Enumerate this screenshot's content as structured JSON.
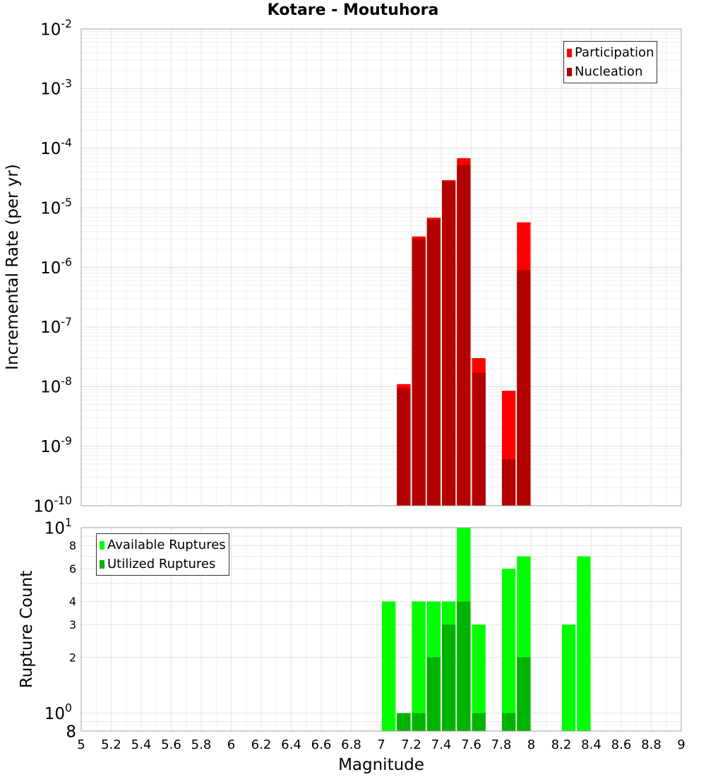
{
  "chart_data": [
    {
      "type": "bar",
      "title": "Kotare - Moutuhora",
      "xlabel": "",
      "ylabel": "Incremental Rate (per yr)",
      "xlim": [
        5,
        9
      ],
      "ylim": [
        1e-10,
        0.01
      ],
      "yscale": "log",
      "grid": true,
      "legend_position": "top-right",
      "bin_width": 0.1,
      "x": [
        7.15,
        7.25,
        7.35,
        7.45,
        7.55,
        7.65,
        7.85,
        7.95
      ],
      "series": [
        {
          "name": "Participation",
          "color": "#ff0000",
          "values": [
            1.1e-08,
            3.3e-06,
            6.8e-06,
            2.9e-05,
            6.8e-05,
            3e-08,
            8.5e-09,
            5.7e-06
          ]
        },
        {
          "name": "Nucleation",
          "color": "#b30000",
          "values": [
            9.5e-09,
            3e-06,
            6.3e-06,
            2.8e-05,
            5.2e-05,
            1.7e-08,
            6e-10,
            9e-07
          ]
        }
      ],
      "y_tick_labels": [
        {
          "base": "10",
          "exp": "-2",
          "value": 0.01
        },
        {
          "base": "10",
          "exp": "-3",
          "value": 0.001
        },
        {
          "base": "10",
          "exp": "-4",
          "value": 0.0001
        },
        {
          "base": "10",
          "exp": "-5",
          "value": 1e-05
        },
        {
          "base": "10",
          "exp": "-6",
          "value": 1e-06
        },
        {
          "base": "10",
          "exp": "-7",
          "value": 1e-07
        },
        {
          "base": "10",
          "exp": "-8",
          "value": 1e-08
        },
        {
          "base": "10",
          "exp": "-9",
          "value": 1e-09
        },
        {
          "base": "10",
          "exp": "-10",
          "value": 1e-10
        }
      ]
    },
    {
      "type": "bar",
      "title": "",
      "xlabel": "Magnitude",
      "ylabel": "Rupture Count",
      "xlim": [
        5,
        9
      ],
      "ylim": [
        0.8,
        10
      ],
      "yscale": "log",
      "grid": true,
      "legend_position": "top-left",
      "bin_width": 0.1,
      "series": [
        {
          "name": "Available Ruptures",
          "color": "#00ff00",
          "x": [
            7.05,
            7.15,
            7.25,
            7.35,
            7.45,
            7.55,
            7.65,
            7.85,
            7.95,
            8.25,
            8.35
          ],
          "values": [
            4,
            1,
            4,
            4,
            4,
            10,
            3,
            6,
            7,
            3,
            7
          ]
        },
        {
          "name": "Utilized Ruptures",
          "color": "#00b300",
          "x": [
            7.15,
            7.25,
            7.35,
            7.45,
            7.55,
            7.65,
            7.85,
            7.95
          ],
          "values": [
            1,
            1,
            2,
            3,
            4,
            1,
            1,
            2
          ]
        }
      ],
      "y_tick_labels": [
        {
          "base": "10",
          "exp": "1",
          "value": 10
        },
        {
          "base": "8",
          "exp": "",
          "value": 8
        },
        {
          "base": "6",
          "exp": "",
          "value": 6
        },
        {
          "base": "4",
          "exp": "",
          "value": 4
        },
        {
          "base": "3",
          "exp": "",
          "value": 3
        },
        {
          "base": "2",
          "exp": "",
          "value": 2
        },
        {
          "base": "10",
          "exp": "0",
          "value": 1
        },
        {
          "base": "8",
          "exp": "",
          "value": 0.8
        }
      ],
      "x_tick_labels": [
        "5",
        "5.2",
        "5.4",
        "5.6",
        "5.8",
        "6",
        "6.2",
        "6.4",
        "6.6",
        "6.8",
        "7",
        "7.2",
        "7.4",
        "7.6",
        "7.8",
        "8",
        "8.2",
        "8.4",
        "8.6",
        "8.8",
        "9"
      ]
    }
  ]
}
